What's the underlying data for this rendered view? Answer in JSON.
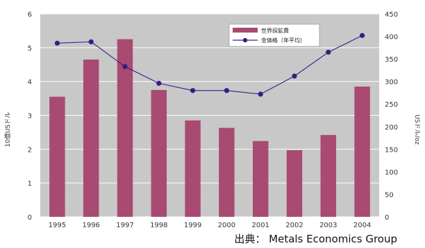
{
  "chart_data": {
    "type": "bar",
    "categories": [
      "1995",
      "1996",
      "1997",
      "1998",
      "1999",
      "2000",
      "2001",
      "2002",
      "2003",
      "2004"
    ],
    "series": [
      {
        "name": "世界探鉱費",
        "axis": "left",
        "type": "bar",
        "values": [
          3.55,
          4.65,
          5.25,
          3.75,
          2.85,
          2.63,
          2.24,
          1.97,
          2.42,
          3.85
        ],
        "color": "#a84a72"
      },
      {
        "name": "金価格（年平均）",
        "axis": "right",
        "type": "line",
        "values": [
          385,
          388,
          333,
          296,
          280,
          280,
          272,
          312,
          365,
          402
        ],
        "color": "#3a1a86"
      }
    ],
    "y_left": {
      "label": "10億USドル",
      "ylim": [
        0,
        6
      ],
      "ticks": [
        "0",
        "1",
        "2",
        "3",
        "4",
        "5",
        "6"
      ]
    },
    "y_right": {
      "label": "USドル/oz",
      "ylim": [
        0,
        450
      ],
      "ticks": [
        "0",
        "50",
        "100",
        "150",
        "200",
        "250",
        "300",
        "350",
        "400",
        "450"
      ]
    },
    "xlabel": "",
    "title": "",
    "grid": true,
    "legend": {
      "position": "top-right"
    }
  },
  "colors": {
    "plot_background": "#c8c8c8",
    "gridline": "#ffffff",
    "bar": "#a84a72",
    "line": "#3a1a86"
  },
  "source": "出典： Metals Economics Group"
}
